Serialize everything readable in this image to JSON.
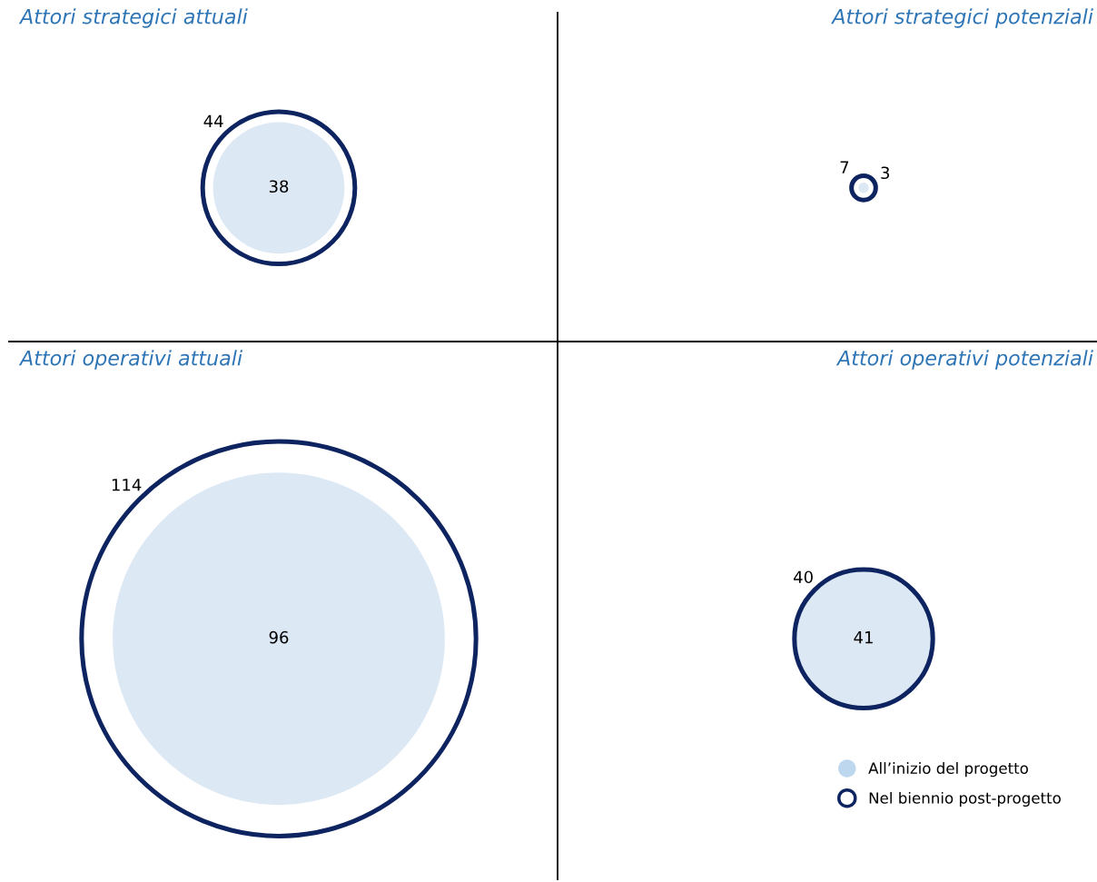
{
  "chart_data": {
    "type": "other",
    "categories": [
      "Attori strategici attuali",
      "Attori strategici potenziali",
      "Attori operativi attuali",
      "Attori operativi potenziali"
    ],
    "series": [
      {
        "name": "All’inizio del progetto",
        "type": "bubble",
        "color": "#dde8f5",
        "values": [
          38,
          3,
          96,
          41
        ]
      },
      {
        "name": "Nel biennio post-progetto",
        "type": "other",
        "color": "#0d2461",
        "values": [
          44,
          7,
          114,
          40
        ]
      }
    ],
    "data_labels": true,
    "legend": "bottom right"
  }
}
